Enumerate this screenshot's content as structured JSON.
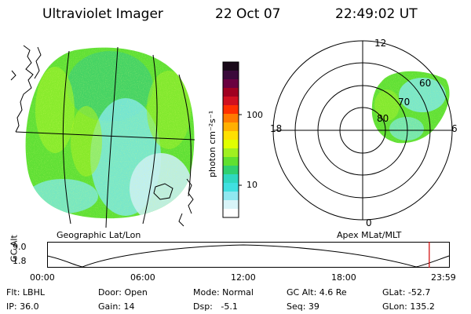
{
  "header": {
    "title": "Ultraviolet Imager",
    "date": "22 Oct 07",
    "time": "22:49:02 UT"
  },
  "left_panel": {
    "caption": "Geographic Lat/Lon"
  },
  "right_panel": {
    "caption": "Apex MLat/MLT",
    "mlt_labels": {
      "top": "12",
      "bottom": "0",
      "left": "18",
      "right": "6"
    },
    "mlat_labels": [
      "60",
      "70",
      "80"
    ]
  },
  "colorbar": {
    "unit": "photon cm⁻²s⁻¹",
    "ticks": [
      "100",
      "10"
    ],
    "colors": [
      "#1a0a1a",
      "#3a0a3a",
      "#6a0040",
      "#a00020",
      "#d01020",
      "#ff3000",
      "#ff7a00",
      "#ffb000",
      "#ffe000",
      "#e0ff00",
      "#a0f020",
      "#60e030",
      "#30d070",
      "#30d8c0",
      "#40e0e0",
      "#90e8f0",
      "#d8f4f8",
      "#ffffff"
    ]
  },
  "altitude_plot": {
    "ylabel": "GC Alt",
    "yticks": [
      "9.0",
      "1.8"
    ],
    "xticks": [
      "00:00",
      "06:00",
      "12:00",
      "18:00",
      "23:59"
    ],
    "marker_time_hours": 22.82,
    "marker_color": "#d00000"
  },
  "footer": {
    "row1": [
      "Flt: LBHL",
      "Door: Open",
      "Mode: Normal",
      "GC Alt: 4.6 Re",
      "GLat: -52.7"
    ],
    "row2": [
      "IP: 36.0",
      "Gain: 14",
      "Dsp:   -5.1",
      "Seq: 39",
      "GLon: 135.2"
    ]
  }
}
